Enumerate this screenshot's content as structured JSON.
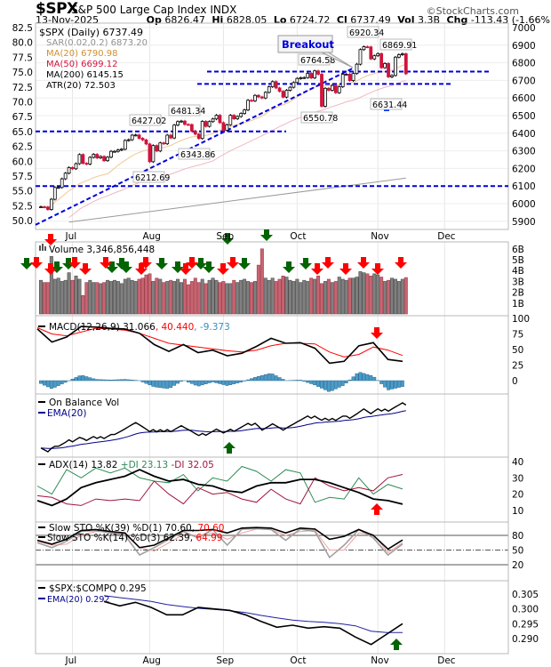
{
  "header": {
    "symbol": "$SPX",
    "name": "S&P 500 Large Cap Index",
    "exchange": "INDX",
    "watermark": "©StockCharts.com",
    "date": "13-Nov-2025",
    "op_label": "Op",
    "op": "6826.47",
    "hi_label": "Hi",
    "hi": "6828.05",
    "lo_label": "Lo",
    "lo": "6724.72",
    "cl_label": "Cl",
    "cl": "6737.49",
    "vol_label": "Vol",
    "vol": "3.3B",
    "chg_label": "Chg",
    "chg": "-113.43 (-1.66%)",
    "chg_icon": "triangle-down-icon"
  },
  "colors": {
    "up": "#000000",
    "down": "#d0143c",
    "ma20": "#e0a050",
    "ma50": "#d0143c",
    "ma200": "#808080",
    "level": "#0000dd",
    "green": "#006400",
    "red": "#ff0000",
    "hist": "#4a9cc8",
    "ema": "#00008b",
    "volume_up": "#808080",
    "volume_down": "#c86470"
  },
  "price_panel": {
    "legend": [
      {
        "text": "$SPX (Daily) 6737.49",
        "color": "#000000"
      },
      {
        "text": "SAR(0.02,0.2) 6873.20",
        "color": "#909090"
      },
      {
        "text": "MA(20) 6790.98",
        "color": "#e0a050"
      },
      {
        "text": "MA(50) 6699.12",
        "color": "#d0143c"
      },
      {
        "text": "MA(200) 6145.15",
        "color": "#000000"
      },
      {
        "text": "ATR(20) 72.503",
        "color": "#000000"
      }
    ],
    "left_axis": [
      "82.5",
      "80.0",
      "77.5",
      "75.0",
      "72.5",
      "70.0",
      "67.5",
      "65.0",
      "62.5",
      "60.0",
      "57.5",
      "55.0",
      "52.5",
      "50.0"
    ],
    "right_axis": [
      "7000",
      "6900",
      "6800",
      "6700",
      "6600",
      "6500",
      "6400",
      "6300",
      "6200",
      "6100",
      "6000",
      "5900"
    ],
    "annotations": [
      "6920.34",
      "6869.91",
      "6764.58",
      "6427.02",
      "6481.34",
      "6343.86",
      "6212.69",
      "6550.78",
      "6631.44"
    ],
    "breakout_label": "Breakout"
  },
  "months": [
    "Jul",
    "Aug",
    "Sep",
    "Oct",
    "Nov",
    "Dec"
  ],
  "volume_panel": {
    "legend": "Volume 3,346,856,448",
    "right_axis": [
      "6B",
      "5B",
      "4B",
      "3B",
      "2B",
      "1B"
    ]
  },
  "macd_panel": {
    "legend_a": "MACD(12,26,9) 31.066",
    "legend_b": ", 40.440",
    ", legend_c": "",
    "legend_c": ", -9.373",
    "right_axis": [
      "100",
      "75",
      "50",
      "25",
      "0"
    ]
  },
  "obv_panel": {
    "legend_a": "On Balance Vol",
    "legend_b": "EMA(20)"
  },
  "adx_panel": {
    "legend_a": "ADX(14) 13.82",
    "legend_b": "+DI 23.13",
    "legend_c": "-DI 32.05",
    "right_axis": [
      "40",
      "30",
      "20",
      "10"
    ]
  },
  "sto_panel": {
    "legend_a1": "Slow STO %K(39) %D(1) 70.60,",
    "legend_a2": "70.60",
    "legend_b1": "Slow STO %K(14) %D(3) 62.39,",
    "legend_b2": "64.99",
    "right_axis": [
      "80",
      "50",
      "20"
    ]
  },
  "ratio_panel": {
    "legend_a": "$SPX:$COMPQ 0.295",
    "legend_b": "EMA(20) 0.292",
    "right_axis": [
      "0.305",
      "0.300",
      "0.295",
      "0.290"
    ]
  },
  "chart_data": {
    "type": "candlestick",
    "title": "$SPX (Daily) 6737.49",
    "ylim": [
      5900,
      7000
    ],
    "closes": [
      5982,
      5981,
      5967,
      6025,
      6092,
      6092,
      6141,
      6173,
      6205,
      6198,
      6227,
      6279,
      6229,
      6225,
      6263,
      6280,
      6260,
      6268,
      6244,
      6264,
      6297,
      6297,
      6305,
      6309,
      6359,
      6363,
      6389,
      6390,
      6371,
      6362,
      6339,
      6238,
      6330,
      6299,
      6345,
      6340,
      6389,
      6373,
      6446,
      6466,
      6469,
      6450,
      6449,
      6412,
      6395,
      6370,
      6467,
      6439,
      6466,
      6481,
      6502,
      6460,
      6416,
      6448,
      6502,
      6482,
      6495,
      6512,
      6532,
      6587,
      6584,
      6615,
      6606,
      6600,
      6632,
      6664,
      6693,
      6657,
      6638,
      6605,
      6644,
      6661,
      6688,
      6711,
      6715,
      6716,
      6740,
      6714,
      6754,
      6735,
      6553,
      6655,
      6644,
      6671,
      6630,
      6664,
      6735,
      6735,
      6699,
      6739,
      6792,
      6875,
      6891,
      6890,
      6822,
      6840,
      6852,
      6772,
      6796,
      6720,
      6728,
      6832,
      6846,
      6851,
      6737.49
    ],
    "volume_billions": [
      3.1,
      2.9,
      2.9,
      5.3,
      3.2,
      3.3,
      3.0,
      3.1,
      3.8,
      3.1,
      3.5,
      3.2,
      1.7,
      2.9,
      3.1,
      2.9,
      2.9,
      2.8,
      2.9,
      3.1,
      3.0,
      3.1,
      3.0,
      2.8,
      3.2,
      3.3,
      3.1,
      3.0,
      3.2,
      3.3,
      3.6,
      3.7,
      3.0,
      3.3,
      3.2,
      2.9,
      3.0,
      3.1,
      3.0,
      3.2,
      2.9,
      3.2,
      2.7,
      3.0,
      3.3,
      2.9,
      3.2,
      2.8,
      3.1,
      3.3,
      3.1,
      2.9,
      3.0,
      2.8,
      2.8,
      3.1,
      2.9,
      3.1,
      3.2,
      3.0,
      2.9,
      3.0,
      4.5,
      6.0,
      3.3,
      3.1,
      3.3,
      3.0,
      3.2,
      3.5,
      3.4,
      3.1,
      3.0,
      3.2,
      2.9,
      3.1,
      3.0,
      3.3,
      3.2,
      3.5,
      2.8,
      3.0,
      3.2,
      2.9,
      3.0,
      3.4,
      3.2,
      3.1,
      3.3,
      3.3,
      3.4,
      3.9,
      3.8,
      3.7,
      3.5,
      3.7,
      3.6,
      3.4,
      3.0,
      3.1,
      3.3,
      3.2,
      3.0,
      3.2,
      3.35
    ],
    "levels": [
      6750,
      6680,
      6410,
      6100
    ],
    "trendline": {
      "from": 5880,
      "to": 6770
    },
    "ma200": {
      "from": 5895,
      "to": 6145.15
    },
    "macd": [
      83,
      62,
      70,
      87,
      86,
      84,
      83,
      76,
      58,
      47,
      58,
      45,
      49,
      40,
      44,
      55,
      68,
      60,
      61,
      52,
      28,
      31,
      56,
      61,
      34,
      31
    ],
    "macd_signal": [
      85,
      75,
      72,
      78,
      84,
      83,
      81,
      76,
      68,
      60,
      57,
      54,
      51,
      48,
      46,
      49,
      56,
      60,
      60,
      59,
      46,
      38,
      42,
      54,
      49,
      40.44
    ],
    "adx": [
      16,
      13,
      17,
      24,
      27,
      29,
      31,
      35,
      31,
      28,
      29,
      26,
      25,
      22,
      21,
      25,
      27,
      27,
      29,
      29,
      27,
      24,
      21,
      17,
      16,
      13.82
    ],
    "plus_di": [
      25,
      20,
      35,
      30,
      36,
      33,
      36,
      30,
      28,
      27,
      32,
      22,
      30,
      28,
      37,
      34,
      28,
      35,
      33,
      15,
      18,
      17,
      30,
      20,
      26,
      23.13
    ],
    "minus_di": [
      19,
      18,
      14,
      13,
      17,
      16,
      17,
      16,
      28,
      20,
      14,
      24,
      20,
      21,
      17,
      15,
      23,
      17,
      14,
      30,
      25,
      22,
      24,
      22,
      30,
      32.05
    ],
    "sto39_k": [
      70,
      62,
      72,
      90,
      92,
      88,
      85,
      55,
      60,
      75,
      90,
      90,
      92,
      85,
      95,
      96,
      95,
      85,
      95,
      93,
      72,
      78,
      92,
      80,
      52,
      70.6
    ],
    "sto14_k": [
      65,
      55,
      68,
      88,
      90,
      85,
      80,
      40,
      55,
      72,
      88,
      75,
      92,
      60,
      93,
      94,
      92,
      70,
      93,
      88,
      35,
      60,
      92,
      75,
      40,
      62.39
    ],
    "sto14_d": [
      68,
      60,
      62,
      80,
      88,
      87,
      82,
      55,
      48,
      65,
      82,
      80,
      85,
      72,
      85,
      93,
      92,
      80,
      88,
      90,
      50,
      50,
      85,
      82,
      45,
      64.99
    ],
    "ratio": [
      0.3025,
      0.301,
      0.3022,
      0.3005,
      0.298,
      0.298,
      0.3005,
      0.3,
      0.2995,
      0.298,
      0.2958,
      0.2938,
      0.2945,
      0.2935,
      0.294,
      0.2935,
      0.2905,
      0.288,
      0.2915,
      0.295
    ],
    "ratio_ema": [
      0.3045,
      0.3038,
      0.3032,
      0.3025,
      0.3015,
      0.3008,
      0.3002,
      0.2998,
      0.2994,
      0.2988,
      0.2978,
      0.297,
      0.2962,
      0.2958,
      0.2955,
      0.295,
      0.2943,
      0.2925,
      0.292,
      0.292
    ]
  }
}
